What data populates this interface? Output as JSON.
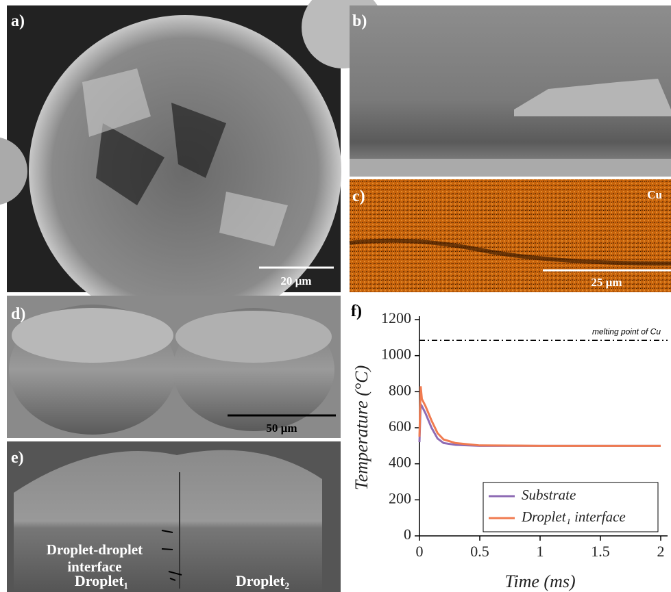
{
  "panels": {
    "a": {
      "label": "a)",
      "scale": "20 µm"
    },
    "b": {
      "label": "b)"
    },
    "c": {
      "label": "c)",
      "element": "Cu",
      "scale": "25 µm"
    },
    "d": {
      "label": "d)",
      "scale": "50 µm"
    },
    "e": {
      "label": "e)",
      "interface_line1": "Droplet-droplet",
      "interface_line2": "interface",
      "droplet1": "Droplet₁",
      "droplet2": "Droplet₂"
    },
    "f": {
      "label": "f)"
    }
  },
  "chart_data": {
    "type": "line",
    "xlabel": "Time (ms)",
    "ylabel": "Temperature (°C)",
    "x": [
      0,
      0.01,
      0.02,
      0.05,
      0.1,
      0.15,
      0.2,
      0.3,
      0.5,
      1,
      1.5,
      2
    ],
    "series": [
      {
        "name": "Substrate",
        "color": "#8e6bb4",
        "values": [
          520,
          730,
          720,
          680,
          600,
          540,
          515,
          505,
          500,
          500,
          500,
          500
        ]
      },
      {
        "name": "Droplet₁ interface",
        "color": "#f07b50",
        "values": [
          550,
          830,
          760,
          720,
          640,
          570,
          535,
          515,
          502,
          500,
          500,
          500
        ]
      }
    ],
    "reference_line": {
      "value": 1085,
      "label": "melting point of Cu"
    },
    "xlim": [
      0,
      2
    ],
    "ylim": [
      0,
      1200
    ],
    "xticks": [
      0,
      0.5,
      1,
      1.5,
      2
    ],
    "yticks": [
      0,
      200,
      400,
      600,
      800,
      1000,
      1200
    ],
    "legend": "lower right"
  }
}
